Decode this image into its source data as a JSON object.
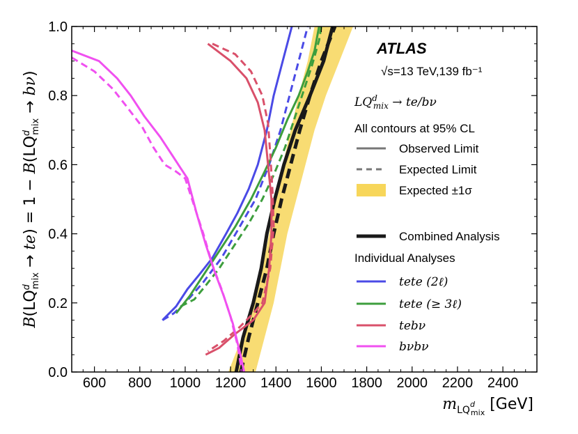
{
  "chart_data": {
    "type": "line",
    "title": "",
    "experiment": "ATLAS",
    "energy_label": "√s=13 TeV,139 fb⁻¹",
    "process_label": "LQ^d_mix → te/bν",
    "cl_label": "All contours at 95% CL",
    "xlabel": "m_LQ^d_mix [GeV]",
    "ylabel": "B(LQ^d_mix → te) = 1 − B(LQ^d_mix → bν)",
    "xlim": [
      500,
      2550
    ],
    "ylim": [
      0.0,
      1.0
    ],
    "xticks": [
      600,
      800,
      1000,
      1200,
      1400,
      1600,
      1800,
      2000,
      2200,
      2400
    ],
    "yticks": [
      0.0,
      0.2,
      0.4,
      0.6,
      0.8,
      1.0
    ],
    "legend": {
      "observed": "Observed Limit",
      "expected": "Expected Limit",
      "band": "Expected ±1σ",
      "combined": "Combined Analysis",
      "individual_header": "Individual Analyses",
      "tete2l": "tete (2ℓ)",
      "tete3l": "tete (≥ 3ℓ)",
      "tebnu": "tebν",
      "bnubnu": "bνbν"
    },
    "colors": {
      "tete2l": "#4a4ae6",
      "tete3l": "#3d9e3d",
      "tebnu": "#d9506a",
      "bnubnu": "#f050f0",
      "combined": "#1a1a1a",
      "band": "#f7d65a"
    },
    "band": {
      "lower": [
        [
          1190,
          0.0
        ],
        [
          1250,
          0.1
        ],
        [
          1300,
          0.2
        ],
        [
          1340,
          0.3
        ],
        [
          1370,
          0.4
        ],
        [
          1400,
          0.5
        ],
        [
          1430,
          0.6
        ],
        [
          1465,
          0.7
        ],
        [
          1500,
          0.8
        ],
        [
          1540,
          0.9
        ],
        [
          1570,
          1.0
        ]
      ],
      "upper": [
        [
          1310,
          0.0
        ],
        [
          1350,
          0.1
        ],
        [
          1390,
          0.2
        ],
        [
          1420,
          0.3
        ],
        [
          1450,
          0.4
        ],
        [
          1490,
          0.5
        ],
        [
          1530,
          0.6
        ],
        [
          1570,
          0.7
        ],
        [
          1620,
          0.8
        ],
        [
          1680,
          0.9
        ],
        [
          1740,
          1.0
        ]
      ]
    },
    "series": [
      {
        "name": "combined_observed",
        "key": "combined",
        "style": "solid",
        "points": [
          [
            1225,
            0.0
          ],
          [
            1255,
            0.1
          ],
          [
            1300,
            0.2
          ],
          [
            1335,
            0.3
          ],
          [
            1360,
            0.4
          ],
          [
            1395,
            0.5
          ],
          [
            1435,
            0.6
          ],
          [
            1485,
            0.7
          ],
          [
            1550,
            0.8
          ],
          [
            1610,
            0.9
          ],
          [
            1650,
            1.0
          ]
        ]
      },
      {
        "name": "combined_expected",
        "key": "combined",
        "style": "dashed",
        "points": [
          [
            1245,
            0.0
          ],
          [
            1280,
            0.1
          ],
          [
            1320,
            0.2
          ],
          [
            1360,
            0.3
          ],
          [
            1390,
            0.4
          ],
          [
            1425,
            0.5
          ],
          [
            1465,
            0.6
          ],
          [
            1505,
            0.7
          ],
          [
            1550,
            0.8
          ],
          [
            1600,
            0.9
          ],
          [
            1660,
            1.0
          ]
        ]
      },
      {
        "name": "tete2l_observed",
        "key": "tete2l",
        "style": "solid",
        "points": [
          [
            900,
            0.15
          ],
          [
            960,
            0.19
          ],
          [
            1010,
            0.24
          ],
          [
            1060,
            0.28
          ],
          [
            1120,
            0.33
          ],
          [
            1180,
            0.4
          ],
          [
            1230,
            0.46
          ],
          [
            1280,
            0.53
          ],
          [
            1320,
            0.6
          ],
          [
            1360,
            0.7
          ],
          [
            1390,
            0.8
          ],
          [
            1430,
            0.9
          ],
          [
            1470,
            1.0
          ]
        ]
      },
      {
        "name": "tete2l_expected",
        "key": "tete2l",
        "style": "dashed",
        "points": [
          [
            900,
            0.15
          ],
          [
            950,
            0.17
          ],
          [
            1000,
            0.2
          ],
          [
            1080,
            0.26
          ],
          [
            1160,
            0.33
          ],
          [
            1240,
            0.42
          ],
          [
            1310,
            0.5
          ],
          [
            1370,
            0.6
          ],
          [
            1420,
            0.7
          ],
          [
            1460,
            0.8
          ],
          [
            1500,
            0.9
          ],
          [
            1540,
            1.0
          ]
        ]
      },
      {
        "name": "tete3l_observed",
        "key": "tete3l",
        "style": "solid",
        "points": [
          [
            960,
            0.17
          ],
          [
            1020,
            0.22
          ],
          [
            1080,
            0.28
          ],
          [
            1150,
            0.35
          ],
          [
            1220,
            0.42
          ],
          [
            1290,
            0.5
          ],
          [
            1350,
            0.58
          ],
          [
            1400,
            0.65
          ],
          [
            1450,
            0.73
          ],
          [
            1500,
            0.8
          ],
          [
            1540,
            0.87
          ],
          [
            1570,
            0.93
          ],
          [
            1590,
            1.0
          ]
        ]
      },
      {
        "name": "tete3l_expected",
        "key": "tete3l",
        "style": "dashed",
        "points": [
          [
            980,
            0.19
          ],
          [
            1040,
            0.21
          ],
          [
            1090,
            0.25
          ],
          [
            1150,
            0.3
          ],
          [
            1210,
            0.36
          ],
          [
            1280,
            0.43
          ],
          [
            1340,
            0.5
          ],
          [
            1390,
            0.57
          ],
          [
            1440,
            0.65
          ],
          [
            1480,
            0.73
          ],
          [
            1520,
            0.81
          ],
          [
            1560,
            0.89
          ],
          [
            1590,
            0.96
          ],
          [
            1600,
            1.0
          ]
        ]
      },
      {
        "name": "tebnu_observed",
        "key": "tebnu",
        "style": "solid",
        "points": [
          [
            1100,
            0.95
          ],
          [
            1200,
            0.9
          ],
          [
            1270,
            0.85
          ],
          [
            1320,
            0.78
          ],
          [
            1350,
            0.7
          ],
          [
            1365,
            0.6
          ],
          [
            1380,
            0.5
          ],
          [
            1380,
            0.4
          ],
          [
            1370,
            0.3
          ],
          [
            1350,
            0.2
          ],
          [
            1300,
            0.15
          ],
          [
            1220,
            0.11
          ],
          [
            1150,
            0.07
          ],
          [
            1090,
            0.05
          ]
        ]
      },
      {
        "name": "tebnu_expected",
        "key": "tebnu",
        "style": "dashed",
        "points": [
          [
            1120,
            0.95
          ],
          [
            1220,
            0.92
          ],
          [
            1290,
            0.87
          ],
          [
            1340,
            0.8
          ],
          [
            1365,
            0.72
          ],
          [
            1375,
            0.63
          ],
          [
            1385,
            0.52
          ],
          [
            1390,
            0.42
          ],
          [
            1375,
            0.3
          ],
          [
            1340,
            0.2
          ],
          [
            1300,
            0.17
          ],
          [
            1240,
            0.13
          ],
          [
            1170,
            0.09
          ],
          [
            1100,
            0.06
          ]
        ]
      },
      {
        "name": "bnubnu_observed",
        "key": "bnubnu",
        "style": "solid",
        "points": [
          [
            500,
            0.93
          ],
          [
            620,
            0.9
          ],
          [
            700,
            0.85
          ],
          [
            760,
            0.8
          ],
          [
            820,
            0.74
          ],
          [
            890,
            0.68
          ],
          [
            940,
            0.63
          ],
          [
            980,
            0.59
          ],
          [
            1010,
            0.56
          ],
          [
            1050,
            0.46
          ],
          [
            1090,
            0.37
          ],
          [
            1130,
            0.29
          ],
          [
            1170,
            0.22
          ],
          [
            1210,
            0.14
          ],
          [
            1240,
            0.06
          ],
          [
            1260,
            0.0
          ]
        ]
      },
      {
        "name": "bnubnu_expected",
        "key": "bnubnu",
        "style": "dashed",
        "points": [
          [
            500,
            0.91
          ],
          [
            600,
            0.87
          ],
          [
            680,
            0.82
          ],
          [
            740,
            0.77
          ],
          [
            810,
            0.71
          ],
          [
            860,
            0.65
          ],
          [
            910,
            0.6
          ],
          [
            960,
            0.58
          ],
          [
            1000,
            0.56
          ],
          [
            1040,
            0.48
          ],
          [
            1080,
            0.4
          ],
          [
            1120,
            0.31
          ],
          [
            1160,
            0.24
          ],
          [
            1200,
            0.16
          ],
          [
            1230,
            0.08
          ],
          [
            1250,
            0.0
          ]
        ]
      }
    ]
  }
}
